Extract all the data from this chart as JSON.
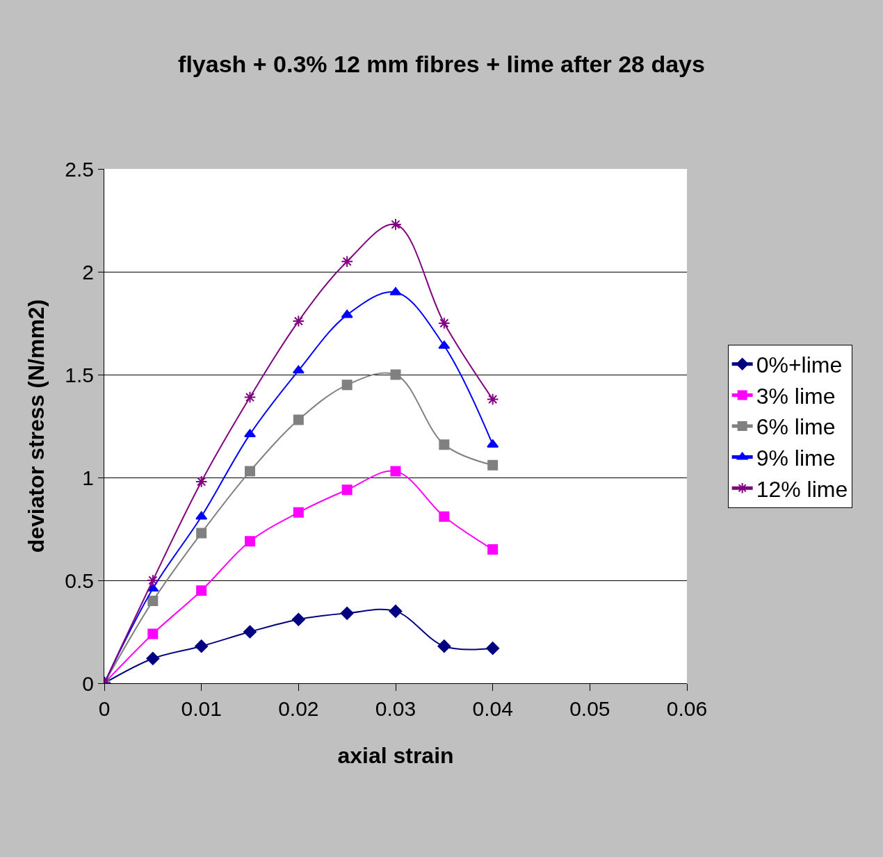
{
  "chart_data": {
    "type": "line",
    "title": "flyash + 0.3% 12 mm fibres + lime after 28 days",
    "xlabel": "axial strain",
    "ylabel": "deviator stress (N/mm2)",
    "x": [
      0,
      0.005,
      0.01,
      0.015,
      0.02,
      0.025,
      0.03,
      0.035,
      0.04
    ],
    "series": [
      {
        "name": "0%+lime",
        "color": "#000080",
        "marker": "diamond",
        "values": [
          0,
          0.12,
          0.18,
          0.25,
          0.31,
          0.34,
          0.35,
          0.18,
          0.17
        ]
      },
      {
        "name": "3% lime",
        "color": "#ff00ff",
        "marker": "square",
        "values": [
          0,
          0.24,
          0.45,
          0.69,
          0.83,
          0.94,
          1.03,
          0.81,
          0.65
        ]
      },
      {
        "name": "6% lime",
        "color": "#808080",
        "marker": "square",
        "values": [
          0,
          0.4,
          0.73,
          1.03,
          1.28,
          1.45,
          1.5,
          1.16,
          1.06
        ]
      },
      {
        "name": "9% lime",
        "color": "#0000ff",
        "marker": "triangle",
        "values": [
          0,
          0.46,
          0.81,
          1.21,
          1.52,
          1.79,
          1.9,
          1.64,
          1.16
        ]
      },
      {
        "name": "12% lime",
        "color": "#800080",
        "marker": "cross",
        "values": [
          0,
          0.5,
          0.98,
          1.39,
          1.76,
          2.05,
          2.23,
          1.75,
          1.38
        ]
      }
    ],
    "xlim": [
      0,
      0.06
    ],
    "xticks": [
      0,
      0.01,
      0.02,
      0.03,
      0.04,
      0.05,
      0.06
    ],
    "ylim": [
      0,
      2.5
    ],
    "yticks": [
      0,
      0.5,
      1,
      1.5,
      2,
      2.5
    ],
    "grid": "y",
    "legend": "right"
  }
}
